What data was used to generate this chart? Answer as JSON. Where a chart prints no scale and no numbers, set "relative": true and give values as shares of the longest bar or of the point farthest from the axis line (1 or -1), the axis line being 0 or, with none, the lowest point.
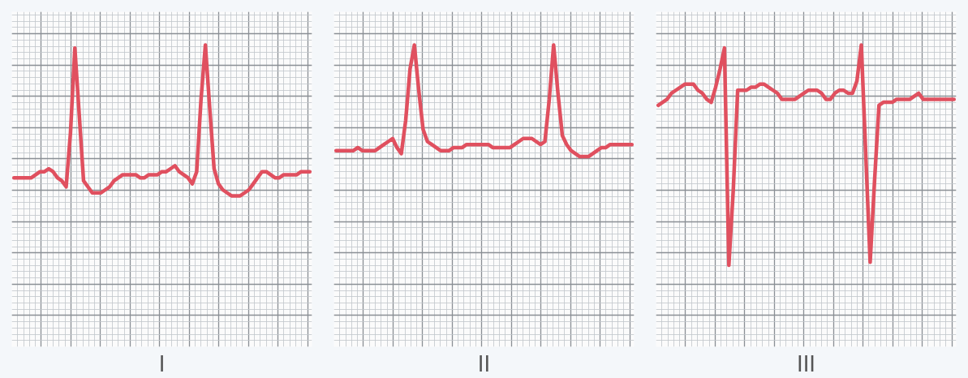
{
  "chart_data": [
    {
      "type": "line",
      "title": "I",
      "relative": true,
      "grid": true,
      "categories": [
        null,
        null,
        null,
        null,
        null,
        null,
        null,
        null,
        null,
        null,
        null,
        null,
        null,
        null,
        null,
        null,
        null,
        null,
        null,
        null,
        null,
        null,
        null,
        null,
        null,
        null,
        null,
        null,
        null,
        null,
        null,
        null,
        null,
        null,
        null,
        null,
        null,
        null,
        null,
        null,
        null,
        null,
        null,
        null,
        null,
        null,
        null,
        null,
        null,
        null,
        null,
        null,
        null,
        null,
        null,
        null,
        null,
        null,
        null,
        null,
        null,
        null,
        null,
        null,
        null,
        null,
        null,
        null,
        null
      ],
      "series": [
        {
          "color": "#e0505f",
          "values": [
            0.56,
            0.56,
            0.56,
            0.56,
            0.56,
            0.57,
            0.58,
            0.58,
            0.59,
            0.58,
            0.56,
            0.55,
            0.53,
            0.71,
            0.99,
            0.77,
            0.55,
            0.53,
            0.51,
            0.51,
            0.51,
            0.52,
            0.53,
            0.55,
            0.56,
            0.57,
            0.57,
            0.57,
            0.57,
            0.56,
            0.56,
            0.57,
            0.57,
            0.57,
            0.58,
            0.58,
            0.59,
            0.6,
            0.58,
            0.57,
            0.56,
            0.54,
            0.58,
            0.82,
            1,
            0.79,
            0.59,
            0.54,
            0.52,
            0.51,
            0.5,
            0.5,
            0.5,
            0.51,
            0.52,
            0.54,
            0.56,
            0.58,
            0.58,
            0.57,
            0.56,
            0.56,
            0.57,
            0.57,
            0.57,
            0.57,
            0.58,
            0.58,
            0.58
          ]
        }
      ]
    },
    {
      "type": "line",
      "title": "II",
      "relative": true,
      "grid": true,
      "categories": [
        null,
        null,
        null,
        null,
        null,
        null,
        null,
        null,
        null,
        null,
        null,
        null,
        null,
        null,
        null,
        null,
        null,
        null,
        null,
        null,
        null,
        null,
        null,
        null,
        null,
        null,
        null,
        null,
        null,
        null,
        null,
        null,
        null,
        null,
        null,
        null,
        null,
        null,
        null,
        null,
        null,
        null,
        null,
        null,
        null,
        null,
        null,
        null,
        null,
        null,
        null,
        null,
        null,
        null,
        null,
        null,
        null,
        null,
        null,
        null,
        null,
        null,
        null,
        null,
        null,
        null,
        null,
        null,
        null
      ],
      "series": [
        {
          "color": "#e0505f",
          "values": [
            0.65,
            0.65,
            0.65,
            0.65,
            0.65,
            0.66,
            0.65,
            0.65,
            0.65,
            0.65,
            0.66,
            0.67,
            0.68,
            0.69,
            0.66,
            0.64,
            0.75,
            0.92,
            1,
            0.85,
            0.72,
            0.68,
            0.67,
            0.66,
            0.65,
            0.65,
            0.65,
            0.66,
            0.66,
            0.66,
            0.67,
            0.67,
            0.67,
            0.67,
            0.67,
            0.67,
            0.66,
            0.66,
            0.66,
            0.66,
            0.66,
            0.67,
            0.68,
            0.69,
            0.69,
            0.69,
            0.68,
            0.67,
            0.68,
            0.82,
            1,
            0.84,
            0.7,
            0.67,
            0.65,
            0.64,
            0.63,
            0.63,
            0.63,
            0.64,
            0.65,
            0.66,
            0.66,
            0.67,
            0.67,
            0.67,
            0.67,
            0.67,
            0.67
          ]
        }
      ]
    },
    {
      "type": "line",
      "title": "III",
      "relative": true,
      "grid": true,
      "categories": [
        null,
        null,
        null,
        null,
        null,
        null,
        null,
        null,
        null,
        null,
        null,
        null,
        null,
        null,
        null,
        null,
        null,
        null,
        null,
        null,
        null,
        null,
        null,
        null,
        null,
        null,
        null,
        null,
        null,
        null,
        null,
        null,
        null,
        null,
        null,
        null,
        null,
        null,
        null,
        null,
        null,
        null,
        null,
        null,
        null,
        null,
        null,
        null,
        null,
        null,
        null,
        null,
        null,
        null,
        null,
        null,
        null,
        null,
        null,
        null,
        null,
        null,
        null,
        null,
        null,
        null,
        null,
        null
      ],
      "series": [
        {
          "color": "#e0505f",
          "values": [
            0.8,
            0.81,
            0.82,
            0.84,
            0.85,
            0.86,
            0.87,
            0.87,
            0.87,
            0.85,
            0.84,
            0.82,
            0.81,
            0.86,
            0.92,
            0.99,
            0.27,
            0.52,
            0.85,
            0.85,
            0.85,
            0.86,
            0.86,
            0.87,
            0.87,
            0.86,
            0.85,
            0.84,
            0.82,
            0.82,
            0.82,
            0.82,
            0.83,
            0.84,
            0.85,
            0.85,
            0.85,
            0.84,
            0.82,
            0.82,
            0.84,
            0.85,
            0.85,
            0.84,
            0.84,
            0.88,
            1,
            0.64,
            0.28,
            0.55,
            0.8,
            0.81,
            0.81,
            0.81,
            0.82,
            0.82,
            0.82,
            0.82,
            0.83,
            0.84,
            0.82,
            0.82,
            0.82,
            0.82,
            0.82,
            0.82,
            0.82,
            0.82
          ]
        }
      ]
    }
  ]
}
